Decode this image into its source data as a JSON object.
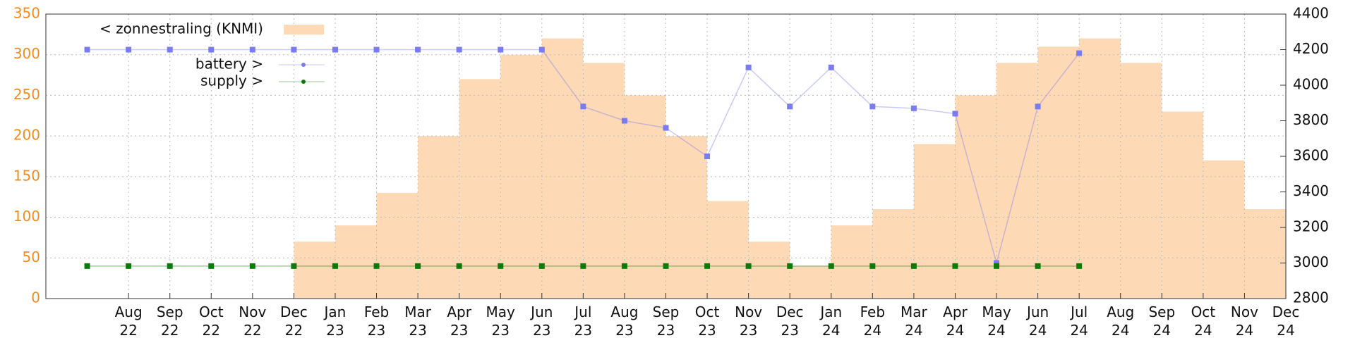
{
  "chart_data": {
    "type": "mixed",
    "xlim": [
      "2022-06",
      "2024-12"
    ],
    "xticks": [
      {
        "value": "2022-08",
        "label": "Aug 22"
      },
      {
        "value": "2022-09",
        "label": "Sep 22"
      },
      {
        "value": "2022-10",
        "label": "Oct 22"
      },
      {
        "value": "2022-11",
        "label": "Nov 22"
      },
      {
        "value": "2022-12",
        "label": "Dec 22"
      },
      {
        "value": "2023-01",
        "label": "Jan 23"
      },
      {
        "value": "2023-02",
        "label": "Feb 23"
      },
      {
        "value": "2023-03",
        "label": "Mar 23"
      },
      {
        "value": "2023-04",
        "label": "Apr 23"
      },
      {
        "value": "2023-05",
        "label": "May 23"
      },
      {
        "value": "2023-06",
        "label": "Jun 23"
      },
      {
        "value": "2023-07",
        "label": "Jul 23"
      },
      {
        "value": "2023-08",
        "label": "Aug 23"
      },
      {
        "value": "2023-09",
        "label": "Sep 23"
      },
      {
        "value": "2023-10",
        "label": "Oct 23"
      },
      {
        "value": "2023-11",
        "label": "Nov 23"
      },
      {
        "value": "2023-12",
        "label": "Dec 23"
      },
      {
        "value": "2024-01",
        "label": "Jan 24"
      },
      {
        "value": "2024-02",
        "label": "Feb 24"
      },
      {
        "value": "2024-03",
        "label": "Mar 24"
      },
      {
        "value": "2024-04",
        "label": "Apr 24"
      },
      {
        "value": "2024-05",
        "label": "May 24"
      },
      {
        "value": "2024-06",
        "label": "Jun 24"
      },
      {
        "value": "2024-07",
        "label": "Jul 24"
      },
      {
        "value": "2024-08",
        "label": "Aug 24"
      },
      {
        "value": "2024-09",
        "label": "Sep 24"
      },
      {
        "value": "2024-10",
        "label": "Oct 24"
      },
      {
        "value": "2024-11",
        "label": "Nov 24"
      },
      {
        "value": "2024-12",
        "label": "Dec 24"
      }
    ],
    "ylim": [
      0,
      350
    ],
    "yticks": [
      0,
      50,
      100,
      150,
      200,
      250,
      300,
      350
    ],
    "y2lim": [
      2800,
      4400
    ],
    "y2ticks": [
      2800,
      3000,
      3200,
      3400,
      3600,
      3800,
      4000,
      4200,
      4400
    ],
    "grid": true,
    "series": [
      {
        "name": "< zonnestraling (KNMI)",
        "kind": "area",
        "color": "#fdd9b5",
        "x": [
          "2022-12",
          "2023-01",
          "2023-02",
          "2023-03",
          "2023-04",
          "2023-05",
          "2023-06",
          "2023-07",
          "2023-08",
          "2023-09",
          "2023-10",
          "2023-11",
          "2023-12",
          "2024-01",
          "2024-02",
          "2024-03",
          "2024-04",
          "2024-05",
          "2024-06",
          "2024-07",
          "2024-08",
          "2024-09",
          "2024-10",
          "2024-11"
        ],
        "values": [
          70,
          90,
          130,
          200,
          270,
          300,
          320,
          290,
          250,
          200,
          120,
          70,
          40,
          90,
          110,
          190,
          250,
          290,
          310,
          320,
          290,
          230,
          170,
          110
        ]
      },
      {
        "name": "battery >",
        "kind": "scatter",
        "axis": "y2",
        "color": "#7b7bf0",
        "x": [
          "2022-07",
          "2022-08",
          "2022-09",
          "2022-10",
          "2022-11",
          "2022-12",
          "2023-01",
          "2023-02",
          "2023-03",
          "2023-04",
          "2023-05",
          "2023-06",
          "2023-07",
          "2023-08",
          "2023-09",
          "2023-10",
          "2023-11",
          "2023-12",
          "2024-01",
          "2024-02",
          "2024-03",
          "2024-04",
          "2024-05",
          "2024-06",
          "2024-07"
        ],
        "values": [
          4200,
          4200,
          4200,
          4200,
          4200,
          4200,
          4200,
          4200,
          4200,
          4200,
          4200,
          4200,
          3880,
          3800,
          3760,
          3600,
          4100,
          3880,
          4100,
          3880,
          3870,
          3840,
          3000,
          3880,
          4180
        ]
      },
      {
        "name": "supply >",
        "kind": "scatter",
        "color": "#0a7a0a",
        "x": [
          "2022-07",
          "2022-08",
          "2022-09",
          "2022-10",
          "2022-11",
          "2022-12",
          "2023-01",
          "2023-02",
          "2023-03",
          "2023-04",
          "2023-05",
          "2023-06",
          "2023-07",
          "2023-08",
          "2023-09",
          "2023-10",
          "2023-11",
          "2023-12",
          "2024-01",
          "2024-02",
          "2024-03",
          "2024-04",
          "2024-05",
          "2024-06",
          "2024-07"
        ],
        "values": [
          40,
          40,
          40,
          40,
          40,
          40,
          40,
          40,
          40,
          40,
          40,
          40,
          40,
          40,
          40,
          40,
          40,
          40,
          40,
          40,
          40,
          40,
          40,
          40,
          40
        ]
      }
    ]
  }
}
